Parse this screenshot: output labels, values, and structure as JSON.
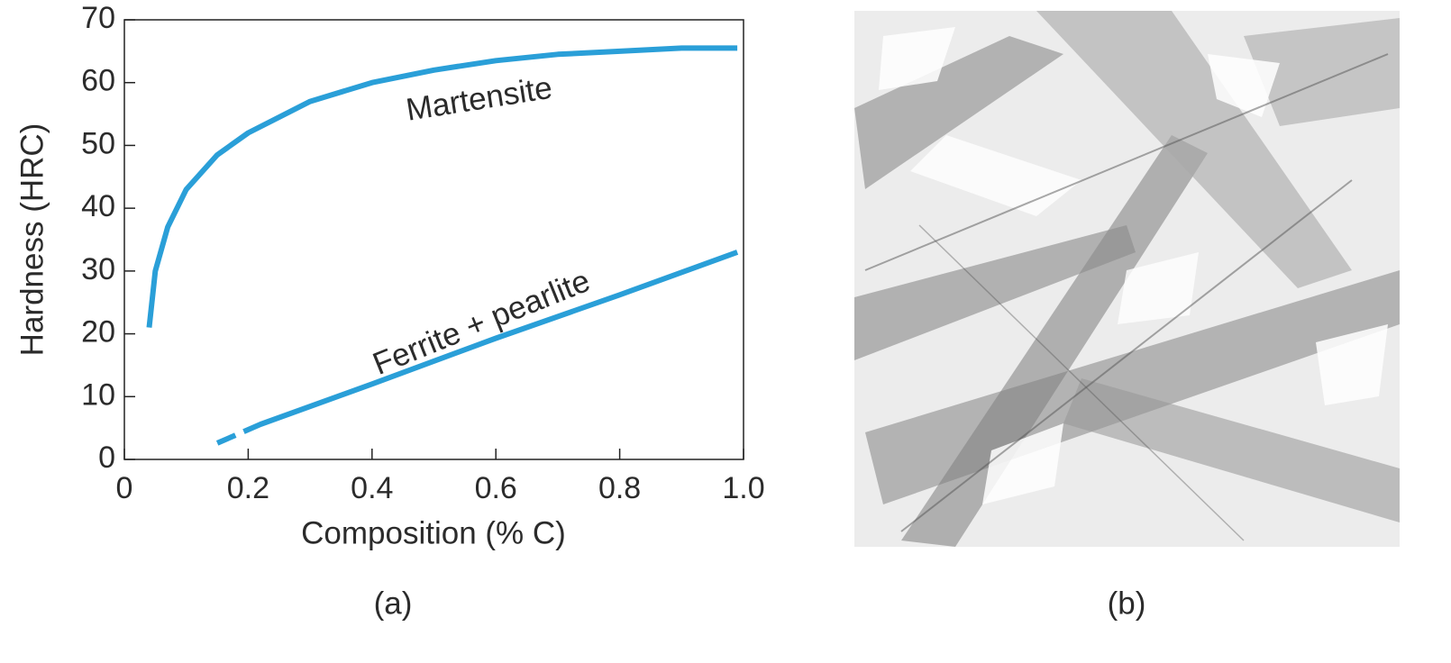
{
  "chart_data": {
    "type": "line",
    "x_label": "Composition (% C)",
    "y_label": "Hardness (HRC)",
    "xlim": [
      0,
      1
    ],
    "ylim": [
      0,
      70
    ],
    "xticks": [
      0,
      0.2,
      0.4,
      0.6,
      0.8,
      {
        "value": 1,
        "label": "1.0"
      }
    ],
    "yticks": [
      0,
      10,
      20,
      30,
      40,
      50,
      60,
      70
    ],
    "series": [
      {
        "name": "Martensite",
        "color": "#2a9fd8",
        "x": [
          0.04,
          0.05,
          0.07,
          0.1,
          0.15,
          0.2,
          0.3,
          0.4,
          0.5,
          0.6,
          0.7,
          0.8,
          0.9,
          0.99
        ],
        "values": [
          21,
          30,
          37,
          43,
          48.5,
          52,
          57,
          60,
          62,
          63.5,
          64.5,
          65,
          65.5,
          65.5
        ]
      },
      {
        "name": "Ferrite + pearlite",
        "color": "#2a9fd8",
        "dashed_below_x": 0.22,
        "x": [
          0.15,
          0.22,
          0.4,
          0.6,
          0.8,
          0.99
        ],
        "values": [
          2.6,
          5.6,
          12,
          19.3,
          26.2,
          33
        ]
      }
    ],
    "captions": [
      "(a)",
      "(b)"
    ]
  }
}
